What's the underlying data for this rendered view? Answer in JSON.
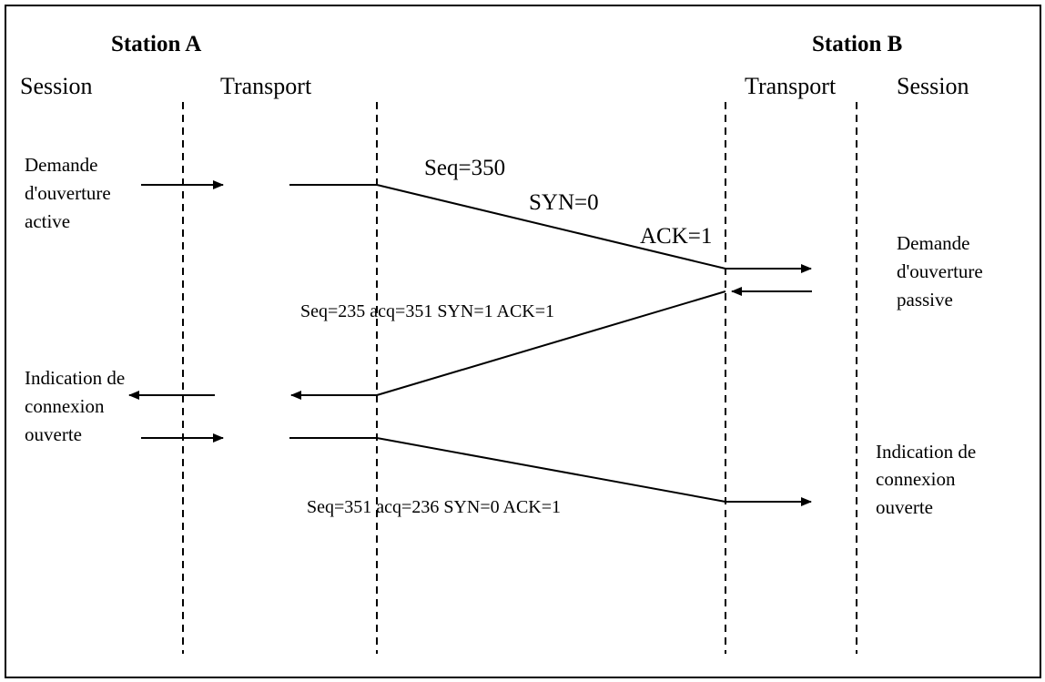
{
  "station_a": {
    "title": "Station A",
    "session_label": "Session",
    "transport_label": "Transport"
  },
  "station_b": {
    "title": "Station B",
    "transport_label": "Transport",
    "session_label": "Session"
  },
  "notes": {
    "a_active_open": [
      "Demande",
      "d'ouverture",
      "active"
    ],
    "b_passive_open": [
      "Demande",
      "d'ouverture",
      "passive"
    ],
    "a_indication": [
      "Indication de",
      "connexion",
      "ouverte"
    ],
    "b_indication": [
      "Indication de",
      "connexion",
      "ouverte"
    ]
  },
  "messages": {
    "m1": {
      "seq": "Seq=350",
      "syn": "SYN=0",
      "ack": "ACK=1"
    },
    "m2": "Seq=235 acq=351 SYN=1  ACK=1",
    "m3": "Seq=351 acq=236 SYN=0 ACK=1"
  }
}
